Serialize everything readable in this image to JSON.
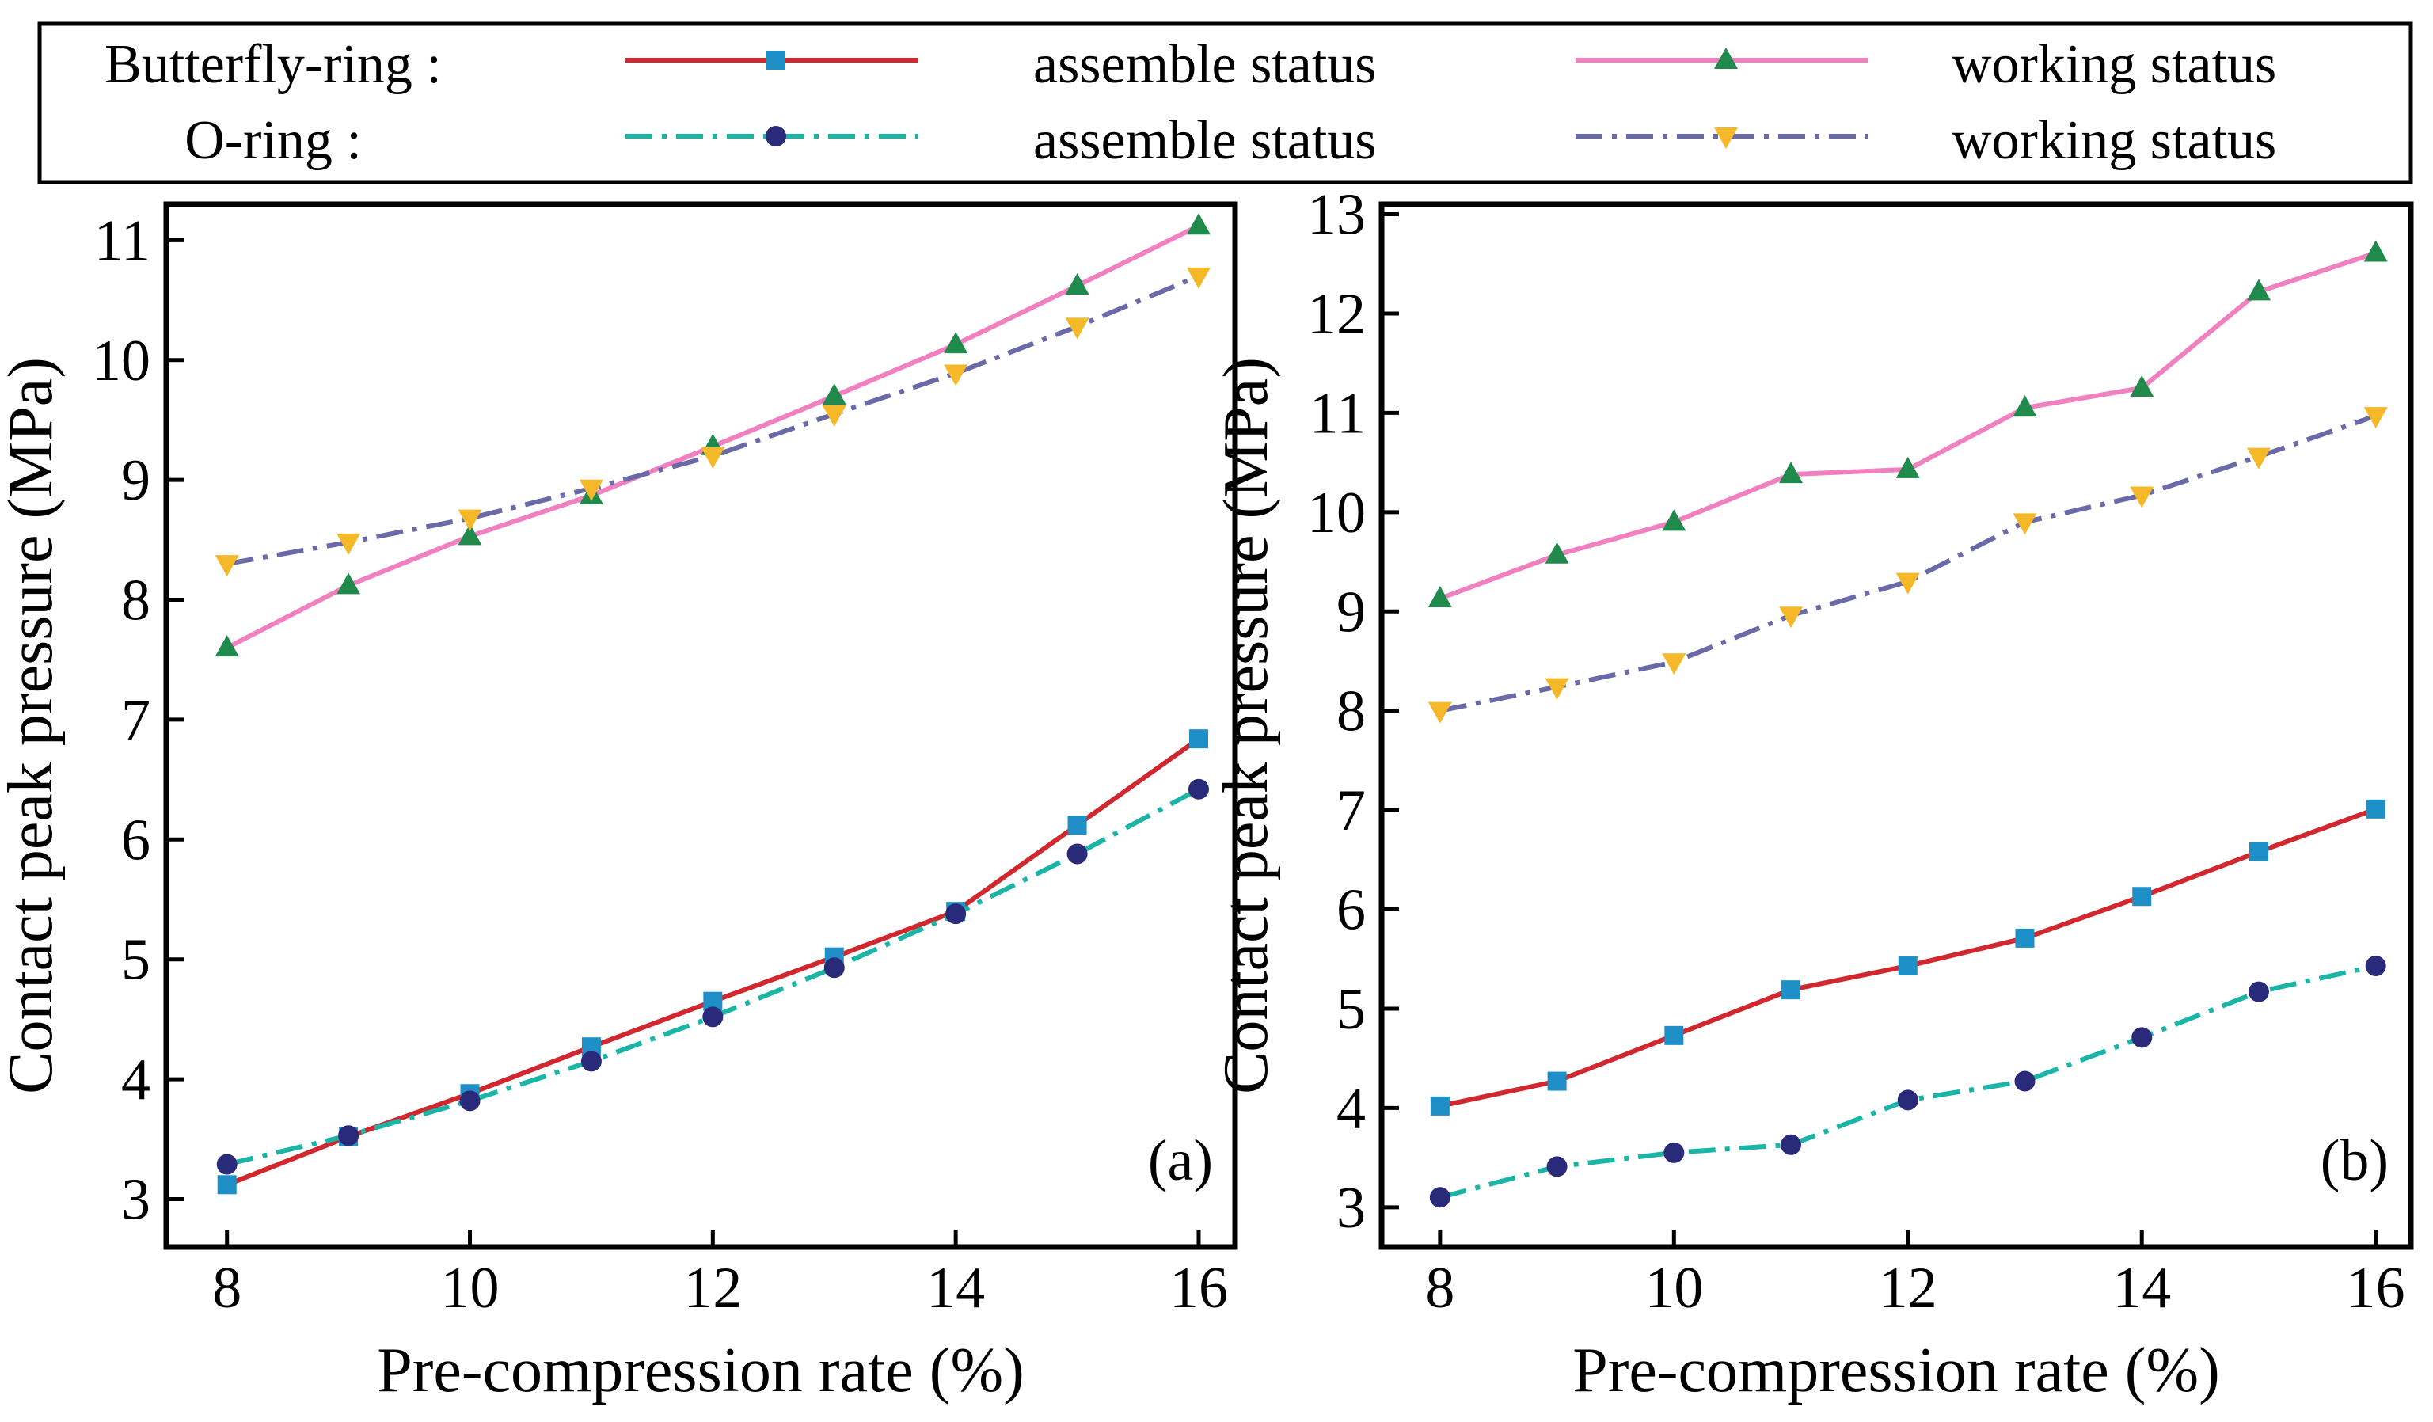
{
  "legend": {
    "rows": [
      {
        "group": "Butterfly-ring :",
        "items": [
          {
            "label": "assemble status",
            "series_key": "br_assemble"
          },
          {
            "label": "working status",
            "series_key": "br_working"
          }
        ]
      },
      {
        "group": "O-ring :",
        "items": [
          {
            "label": "assemble status",
            "series_key": "or_assemble"
          },
          {
            "label": "working status",
            "series_key": "or_working"
          }
        ]
      }
    ]
  },
  "styles": {
    "br_assemble": {
      "color": "#d0282e",
      "marker": "square",
      "marker_color": "#1f8fc8",
      "dash": "solid"
    },
    "br_working": {
      "color": "#f080c0",
      "marker": "triangle-up",
      "marker_color": "#1f8a4c",
      "dash": "solid"
    },
    "or_assemble": {
      "color": "#1ab5a6",
      "marker": "circle",
      "marker_color": "#2a2a7a",
      "dash": "dashdot"
    },
    "or_working": {
      "color": "#6a6aa8",
      "marker": "triangle-down",
      "marker_color": "#f4b829",
      "dash": "dashdot"
    }
  },
  "chart_data": [
    {
      "type": "line",
      "panel_label": "(a)",
      "xlabel": "Pre-compression rate (%)",
      "ylabel": "Contact peak pressure (MPa)",
      "x": [
        8,
        9,
        10,
        11,
        12,
        13,
        14,
        15,
        16
      ],
      "xlim": [
        7.5,
        16.3
      ],
      "ylim": [
        2.6,
        11.3
      ],
      "xticks": [
        8,
        10,
        12,
        14,
        16
      ],
      "yticks": [
        3,
        4,
        5,
        6,
        7,
        8,
        9,
        10,
        11
      ],
      "series": [
        {
          "key": "br_assemble",
          "name": "Butterfly-ring assemble status",
          "values": [
            3.12,
            3.52,
            3.88,
            4.27,
            4.65,
            5.02,
            5.4,
            6.12,
            6.84
          ]
        },
        {
          "key": "br_working",
          "name": "Butterfly-ring working status",
          "values": [
            7.6,
            8.12,
            8.53,
            8.87,
            9.28,
            9.7,
            10.13,
            10.62,
            11.12
          ]
        },
        {
          "key": "or_assemble",
          "name": "O-ring assemble status",
          "values": [
            3.29,
            3.53,
            3.82,
            4.15,
            4.52,
            4.93,
            5.38,
            5.88,
            6.42
          ]
        },
        {
          "key": "or_working",
          "name": "O-ring working status",
          "values": [
            8.3,
            8.48,
            8.68,
            8.93,
            9.2,
            9.55,
            9.89,
            10.28,
            10.7
          ]
        }
      ]
    },
    {
      "type": "line",
      "panel_label": "(b)",
      "xlabel": "Pre-compression rate (%)",
      "ylabel": "Contact peak pressure (MPa)",
      "x": [
        8,
        9,
        10,
        11,
        12,
        13,
        14,
        15,
        16
      ],
      "xlim": [
        7.5,
        16.3
      ],
      "ylim": [
        2.6,
        13.1
      ],
      "xticks": [
        8,
        10,
        12,
        14,
        16
      ],
      "yticks": [
        3,
        4,
        5,
        6,
        7,
        8,
        9,
        10,
        11,
        12,
        13
      ],
      "series": [
        {
          "key": "br_assemble",
          "name": "Butterfly-ring assemble status",
          "values": [
            4.02,
            4.27,
            4.73,
            5.19,
            5.43,
            5.71,
            6.13,
            6.58,
            7.01
          ]
        },
        {
          "key": "br_working",
          "name": "Butterfly-ring working status",
          "values": [
            9.13,
            9.57,
            9.9,
            10.38,
            10.43,
            11.05,
            11.25,
            12.22,
            12.61
          ]
        },
        {
          "key": "or_assemble",
          "name": "O-ring assemble status",
          "values": [
            3.1,
            3.41,
            3.55,
            3.63,
            4.08,
            4.27,
            4.71,
            5.17,
            5.43
          ]
        },
        {
          "key": "or_working",
          "name": "O-ring working status",
          "values": [
            8.0,
            8.24,
            8.49,
            8.96,
            9.3,
            9.9,
            10.17,
            10.56,
            10.97
          ]
        }
      ]
    }
  ]
}
